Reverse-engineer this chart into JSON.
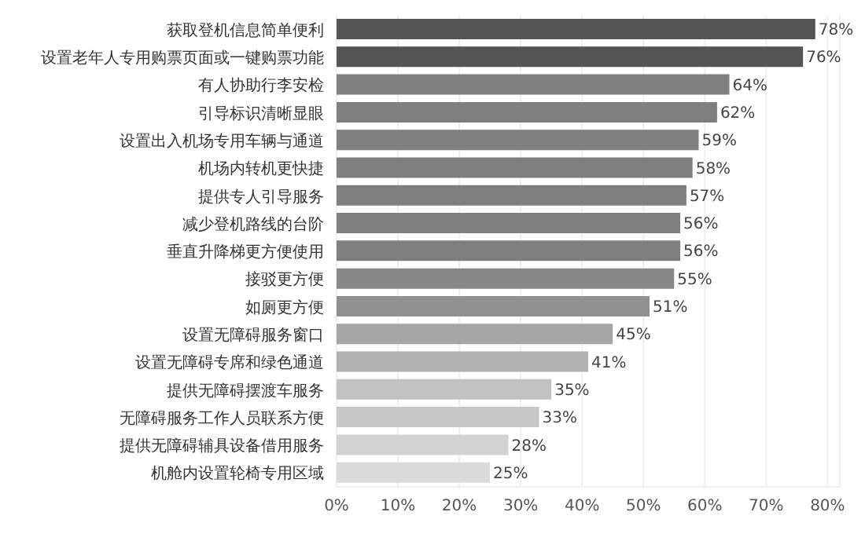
{
  "chart_data": {
    "type": "bar",
    "orientation": "horizontal",
    "categories": [
      "获取登机信息简单便利",
      "设置老年人专用购票页面或一键购票功能",
      "有人协助行李安检",
      "引导标识清晰显眼",
      "设置出入机场专用车辆与通道",
      "机场内转机更快捷",
      "提供专人引导服务",
      "减少登机路线的台阶",
      "垂直升降梯更方便使用",
      "接驳更方便",
      "如厕更方便",
      "设置无障碍服务窗口",
      "设置无障碍专席和绿色通道",
      "提供无障碍摆渡车服务",
      "无障碍服务工作人员联系方便",
      "提供无障碍辅具设备借用服务",
      "机舱内设置轮椅专用区域"
    ],
    "values": [
      78,
      76,
      64,
      62,
      59,
      58,
      57,
      56,
      56,
      55,
      51,
      45,
      41,
      35,
      33,
      28,
      25
    ],
    "value_labels": [
      "78%",
      "76%",
      "64%",
      "62%",
      "59%",
      "58%",
      "57%",
      "56%",
      "56%",
      "55%",
      "51%",
      "45%",
      "41%",
      "35%",
      "33%",
      "28%",
      "25%"
    ],
    "colors": [
      "#555555",
      "#555555",
      "#7f7f7f",
      "#7f7f7f",
      "#7f7f7f",
      "#7f7f7f",
      "#7f7f7f",
      "#7f7f7f",
      "#7f7f7f",
      "#888888",
      "#909090",
      "#a6a6a6",
      "#b2b2b2",
      "#c2c2c2",
      "#c8c8c8",
      "#d2d2d2",
      "#dadada"
    ],
    "xlim": [
      0,
      82
    ],
    "xticks": [
      {
        "value": 0,
        "label": "0%"
      },
      {
        "value": 10,
        "label": "10%"
      },
      {
        "value": 20,
        "label": "20%"
      },
      {
        "value": 30,
        "label": "30%"
      },
      {
        "value": 40,
        "label": "40%"
      },
      {
        "value": 50,
        "label": "50%"
      },
      {
        "value": 60,
        "label": "60%"
      },
      {
        "value": 70,
        "label": "70%"
      },
      {
        "value": 80,
        "label": "80%"
      }
    ],
    "grid": "x"
  }
}
